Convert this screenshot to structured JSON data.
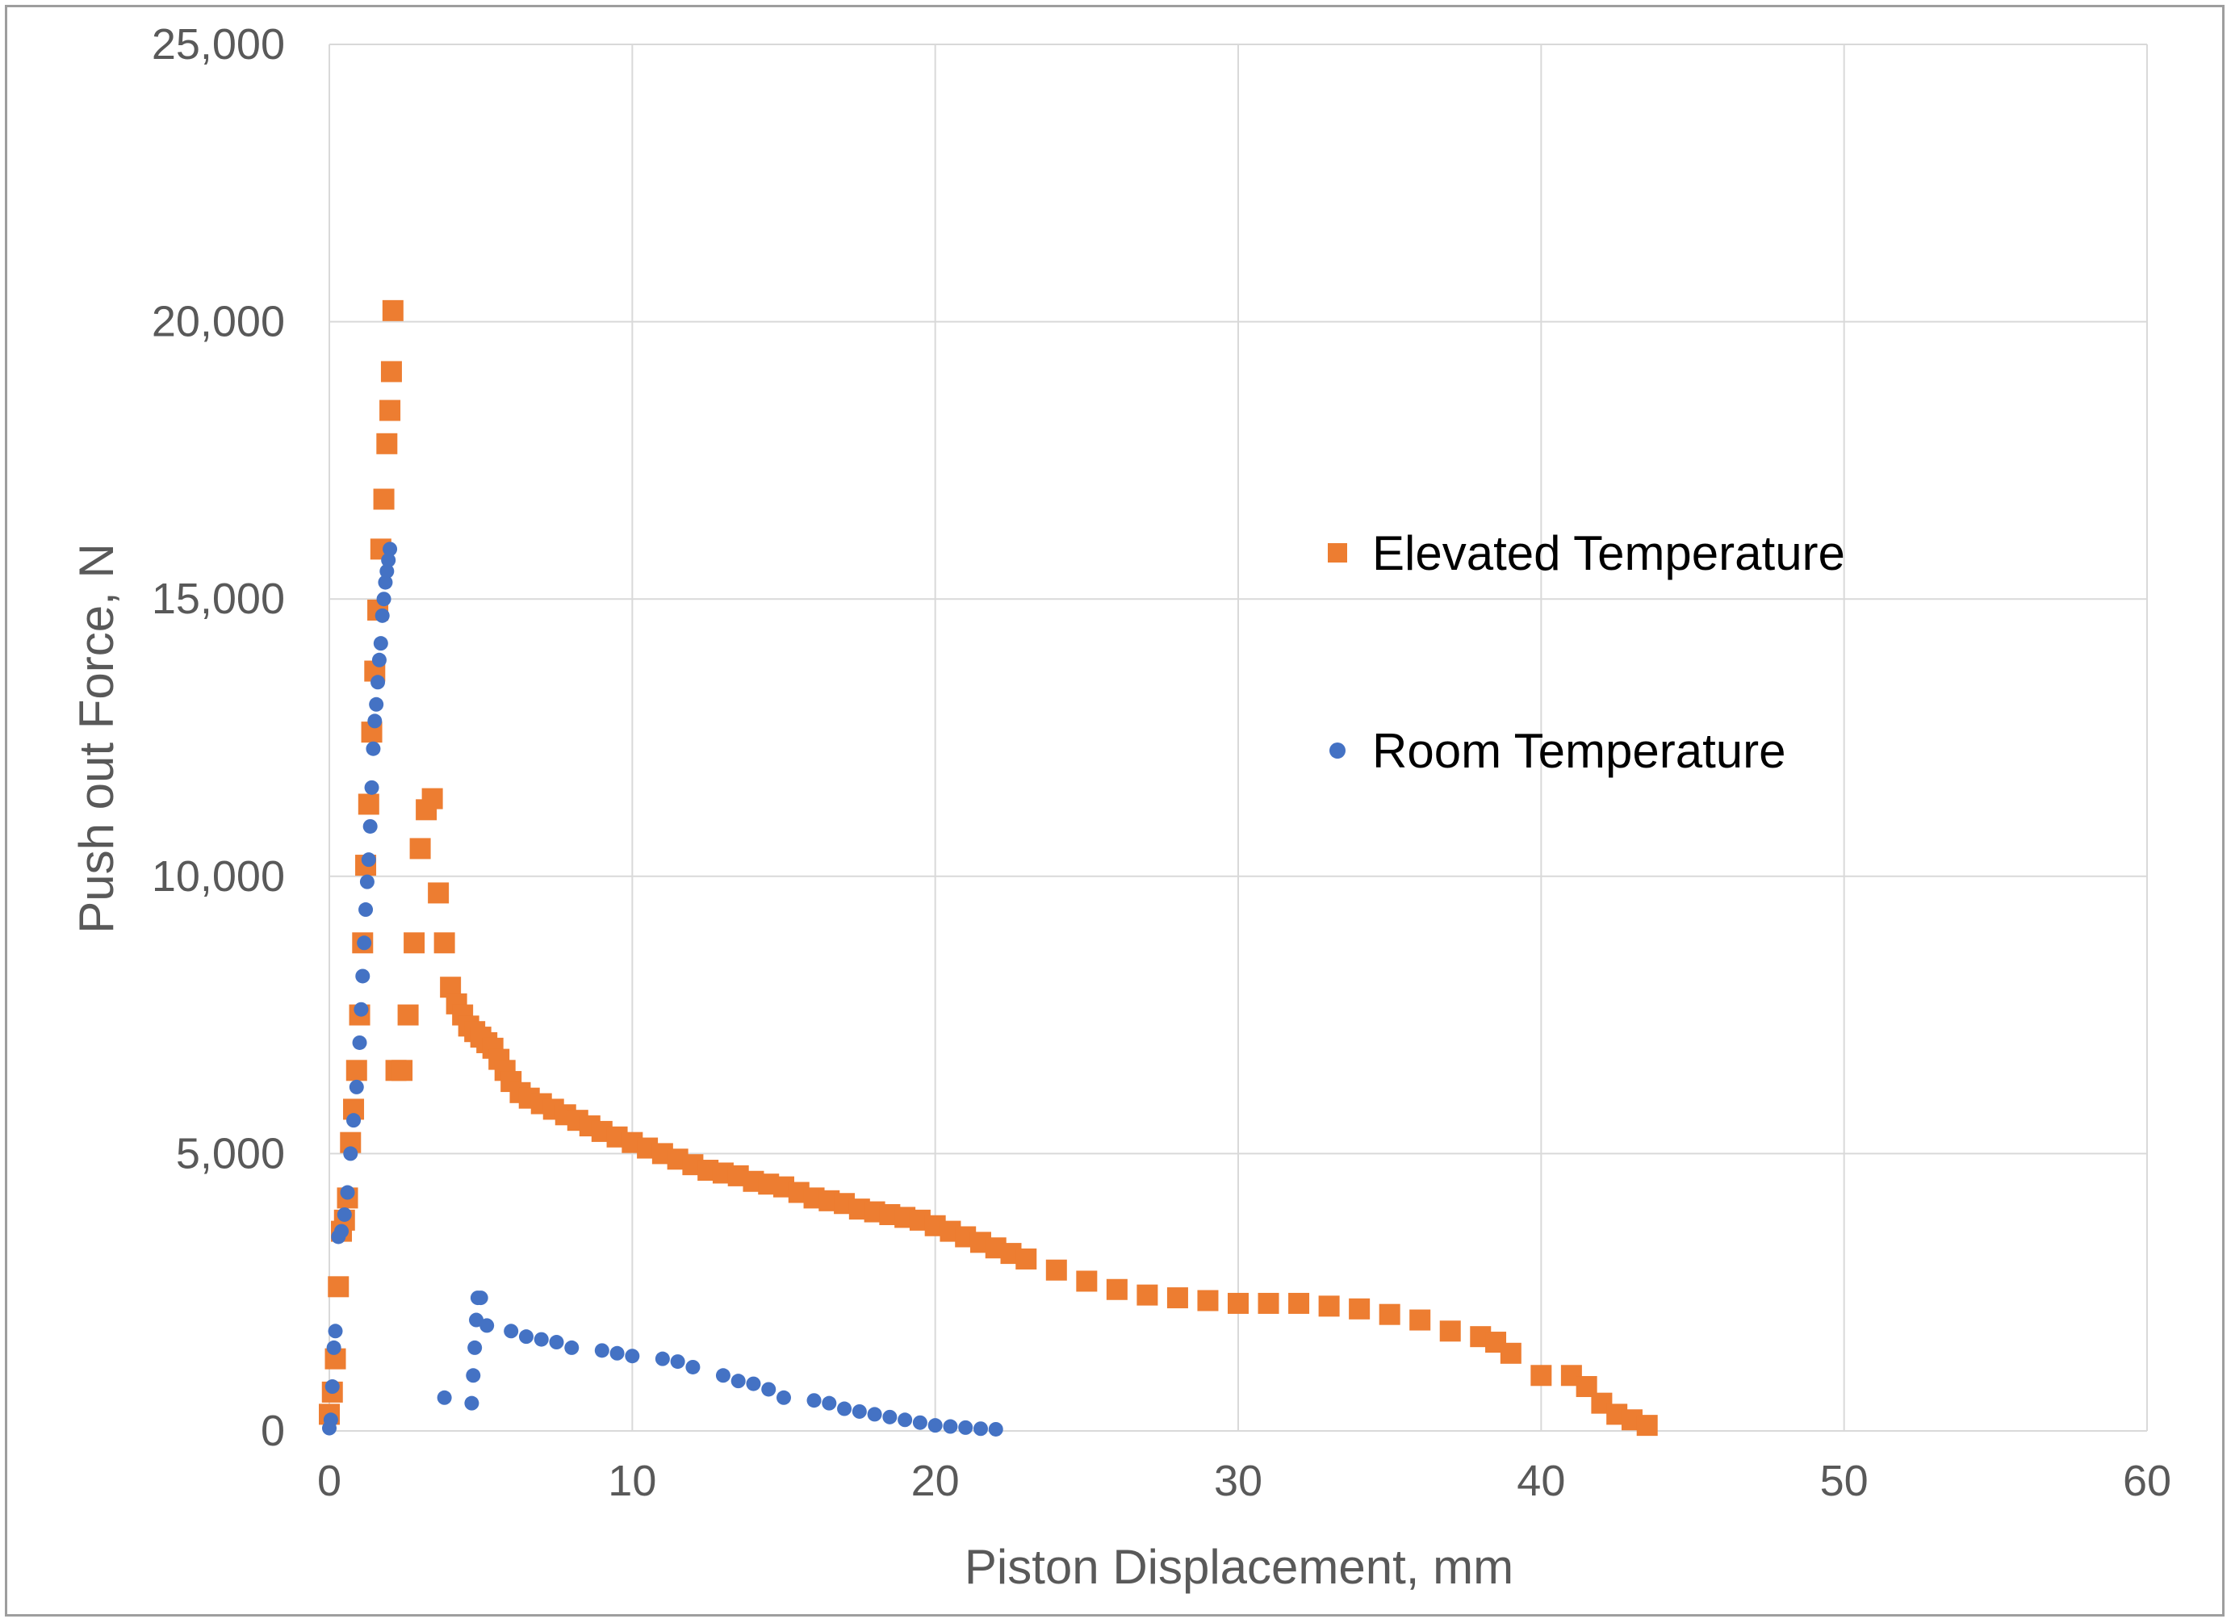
{
  "chart_data": {
    "type": "scatter",
    "title": "",
    "xlabel": "Piston Displacement, mm",
    "ylabel": "Push out Force, N",
    "xlim": [
      0,
      60
    ],
    "ylim": [
      0,
      25000
    ],
    "x_ticks": [
      0,
      10,
      20,
      30,
      40,
      50,
      60
    ],
    "y_ticks": [
      0,
      5000,
      10000,
      15000,
      20000,
      25000
    ],
    "x_tick_labels": [
      "0",
      "10",
      "20",
      "30",
      "40",
      "50",
      "60"
    ],
    "y_tick_labels": [
      "0",
      "5,000",
      "10,000",
      "15,000",
      "20,000",
      "25,000"
    ],
    "grid": true,
    "legend_position": "right",
    "series": [
      {
        "name": "Elevated Temperature",
        "marker": "square",
        "color": "#ED7D31",
        "x": [
          0.0,
          0.1,
          0.2,
          0.3,
          0.4,
          0.5,
          0.6,
          0.7,
          0.8,
          0.9,
          1.0,
          1.1,
          1.2,
          1.3,
          1.4,
          1.5,
          1.6,
          1.7,
          1.8,
          1.9,
          2.0,
          2.05,
          2.1,
          2.2,
          2.4,
          2.6,
          2.8,
          3.0,
          3.2,
          3.4,
          3.6,
          3.8,
          4.0,
          4.2,
          4.4,
          4.6,
          4.8,
          5.0,
          5.2,
          5.4,
          5.6,
          5.8,
          6.0,
          6.3,
          6.6,
          7.0,
          7.4,
          7.8,
          8.2,
          8.6,
          9.0,
          9.5,
          10.0,
          10.5,
          11.0,
          11.5,
          12.0,
          12.5,
          13.0,
          13.5,
          14.0,
          14.5,
          15.0,
          15.5,
          16.0,
          16.5,
          17.0,
          17.5,
          18.0,
          18.5,
          19.0,
          19.5,
          20.0,
          20.5,
          21.0,
          21.5,
          22.0,
          22.5,
          23.0,
          24.0,
          25.0,
          26.0,
          27.0,
          28.0,
          29.0,
          30.0,
          31.0,
          32.0,
          33.0,
          34.0,
          35.0,
          36.0,
          37.0,
          38.0,
          38.5,
          39.0,
          40.0,
          41.0,
          41.5,
          42.0,
          42.5,
          43.0,
          43.5
        ],
        "y": [
          300,
          700,
          1300,
          2600,
          3600,
          3800,
          4200,
          5200,
          5800,
          6500,
          7500,
          8800,
          10200,
          11300,
          12600,
          13700,
          14800,
          15900,
          16800,
          17800,
          18400,
          19100,
          20200,
          6500,
          6500,
          7500,
          8800,
          10500,
          11200,
          11400,
          9700,
          8800,
          8000,
          7700,
          7500,
          7300,
          7200,
          7100,
          7000,
          6900,
          6700,
          6500,
          6300,
          6100,
          6000,
          5900,
          5800,
          5700,
          5600,
          5500,
          5400,
          5300,
          5200,
          5100,
          5000,
          4900,
          4800,
          4700,
          4650,
          4600,
          4500,
          4450,
          4400,
          4300,
          4200,
          4150,
          4100,
          4000,
          3950,
          3900,
          3850,
          3800,
          3700,
          3600,
          3500,
          3400,
          3300,
          3200,
          3100,
          2900,
          2700,
          2550,
          2450,
          2400,
          2350,
          2300,
          2300,
          2300,
          2250,
          2200,
          2100,
          2000,
          1800,
          1700,
          1600,
          1400,
          1000,
          1000,
          800,
          500,
          300,
          200,
          100
        ]
      },
      {
        "name": "Room Temperature",
        "marker": "circle",
        "color": "#4472C4",
        "x": [
          0.0,
          0.05,
          0.1,
          0.15,
          0.2,
          0.3,
          0.4,
          0.5,
          0.6,
          0.7,
          0.8,
          0.9,
          1.0,
          1.05,
          1.1,
          1.15,
          1.2,
          1.25,
          1.3,
          1.35,
          1.4,
          1.45,
          1.5,
          1.55,
          1.6,
          1.65,
          1.7,
          1.75,
          1.8,
          1.85,
          1.9,
          1.95,
          2.0,
          3.8,
          4.7,
          4.75,
          4.8,
          4.85,
          4.9,
          5.0,
          5.2,
          6.0,
          6.5,
          7.0,
          7.5,
          8.0,
          9.0,
          9.5,
          10.0,
          11.0,
          11.5,
          12.0,
          13.0,
          13.5,
          14.0,
          14.5,
          15.0,
          16.0,
          16.5,
          17.0,
          17.5,
          18.0,
          18.5,
          19.0,
          19.5,
          20.0,
          20.5,
          21.0,
          21.5,
          22.0
        ],
        "y": [
          50,
          200,
          800,
          1500,
          1800,
          3500,
          3600,
          3900,
          4300,
          5000,
          5600,
          6200,
          7000,
          7600,
          8200,
          8800,
          9400,
          9900,
          10300,
          10900,
          11600,
          12300,
          12800,
          13100,
          13500,
          13900,
          14200,
          14700,
          15000,
          15300,
          15500,
          15700,
          15900,
          600,
          500,
          1000,
          1500,
          2000,
          2400,
          2400,
          1900,
          1800,
          1700,
          1650,
          1600,
          1500,
          1450,
          1400,
          1350,
          1300,
          1250,
          1150,
          1000,
          900,
          850,
          750,
          600,
          550,
          500,
          400,
          350,
          300,
          250,
          200,
          150,
          100,
          80,
          60,
          40,
          30
        ]
      }
    ]
  }
}
